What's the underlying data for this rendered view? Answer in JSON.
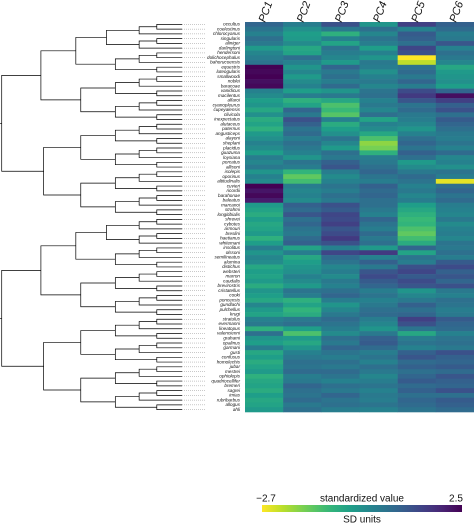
{
  "chart_data": {
    "type": "heatmap",
    "x": [
      "PC1",
      "PC2",
      "PC3",
      "PC4",
      "PC5",
      "PC6"
    ],
    "y": [
      "occultus",
      "coelestinus",
      "chlorocyanus",
      "singularis",
      "aliniger",
      "darlingtoni",
      "hendersoni",
      "dolichocephalus",
      "bahorucoensis",
      "equestris",
      "luteogularis",
      "smallwoodi",
      "noblei",
      "baracoae",
      "vanidicus",
      "macilentus",
      "alfaroi",
      "cyanopleurus",
      "cupeyalensis",
      "clivicola",
      "inexpectatus",
      "alutaceus",
      "paternus",
      "angusticeps",
      "alayoni",
      "sheplani",
      "placidus",
      "guazuma",
      "loysiana",
      "porcatus",
      "allisoni",
      "isolepis",
      "oporinus",
      "altitudinalis",
      "cuvieri",
      "ricordii",
      "barahonae",
      "baleatus",
      "marcanoi",
      "strahmi",
      "longitibialis",
      "shrevei",
      "cybotes",
      "armouri",
      "breslini",
      "haetianus",
      "whitemani",
      "insolitus",
      "olssoni",
      "semilineatus",
      "alumina",
      "distichus",
      "websteri",
      "marron",
      "caudalis",
      "brevirostris",
      "cristatellus",
      "cooki",
      "poncensis",
      "gundlachi",
      "pulchellus",
      "krugi",
      "stratulus",
      "evermanni",
      "lineatopus",
      "valencienni",
      "grahami",
      "opalinus",
      "garmani",
      "gusti",
      "confusus",
      "homolechis",
      "jubar",
      "mestrei",
      "ophiolepis",
      "quadriocellifer",
      "bremeri",
      "sagrei",
      "imias",
      "rubribarbus",
      "allogus",
      "ahli"
    ],
    "values": [
      [
        0.8,
        0.3,
        1.2,
        -0.2,
        1.5,
        0.9
      ],
      [
        0.5,
        -0.1,
        0.4,
        0.6,
        0.2,
        0.7
      ],
      [
        0.2,
        -0.4,
        -0.8,
        0.1,
        1.0,
        0.3
      ],
      [
        0.6,
        -0.3,
        0.2,
        0.5,
        0.9,
        0.4
      ],
      [
        0.4,
        0.0,
        -0.5,
        0.3,
        0.6,
        1.1
      ],
      [
        -0.3,
        -0.6,
        0.5,
        -0.4,
        1.4,
        0.2
      ],
      [
        0.1,
        -0.5,
        0.3,
        0.2,
        1.2,
        0.6
      ],
      [
        0.3,
        0.6,
        0.1,
        -0.2,
        -2.7,
        0.4
      ],
      [
        0.5,
        0.2,
        -0.3,
        0.4,
        -2.2,
        0.1
      ],
      [
        2.5,
        -0.2,
        0.8,
        0.3,
        0.5,
        -0.6
      ],
      [
        2.4,
        0.1,
        0.4,
        -0.1,
        0.7,
        -0.3
      ],
      [
        2.5,
        -0.3,
        0.6,
        0.2,
        0.4,
        -0.2
      ],
      [
        2.3,
        0.0,
        0.3,
        0.4,
        0.8,
        -0.1
      ],
      [
        2.4,
        0.2,
        0.7,
        0.1,
        0.3,
        -0.4
      ],
      [
        0.2,
        -0.4,
        -0.2,
        0.5,
        1.3,
        0.8
      ],
      [
        0.0,
        0.3,
        0.4,
        0.6,
        1.6,
        2.3
      ],
      [
        -0.4,
        -0.8,
        -0.6,
        0.2,
        1.1,
        1.5
      ],
      [
        -0.2,
        -0.5,
        -1.2,
        0.4,
        0.5,
        0.9
      ],
      [
        -0.6,
        0.8,
        -1.0,
        0.1,
        0.7,
        1.2
      ],
      [
        -0.1,
        0.4,
        -1.3,
        0.6,
        0.4,
        0.6
      ],
      [
        -0.7,
        1.2,
        0.2,
        -0.5,
        0.3,
        1.0
      ],
      [
        -0.5,
        0.9,
        -0.7,
        0.2,
        0.1,
        0.8
      ],
      [
        -0.8,
        0.5,
        -0.4,
        0.0,
        -0.2,
        0.6
      ],
      [
        -0.3,
        0.7,
        -0.1,
        -0.6,
        0.2,
        0.4
      ],
      [
        -0.1,
        0.3,
        0.5,
        -1.2,
        0.6,
        0.3
      ],
      [
        0.2,
        0.6,
        0.1,
        -1.8,
        0.8,
        0.5
      ],
      [
        0.0,
        0.4,
        -0.3,
        -1.6,
        0.5,
        0.2
      ],
      [
        -0.4,
        0.2,
        0.6,
        -0.8,
        0.9,
        0.7
      ],
      [
        0.3,
        -0.2,
        0.4,
        0.3,
        0.6,
        0.1
      ],
      [
        0.1,
        0.5,
        0.9,
        0.4,
        -0.3,
        0.2
      ],
      [
        0.4,
        0.3,
        1.1,
        0.6,
        0.0,
        -0.1
      ],
      [
        -0.2,
        -0.9,
        0.3,
        0.8,
        0.4,
        0.5
      ],
      [
        0.2,
        -1.4,
        0.0,
        0.5,
        0.7,
        0.3
      ],
      [
        0.0,
        -1.1,
        0.2,
        0.3,
        0.5,
        -2.5
      ],
      [
        2.5,
        0.3,
        0.5,
        0.9,
        0.2,
        0.6
      ],
      [
        2.2,
        0.1,
        0.3,
        0.7,
        0.4,
        0.8
      ],
      [
        2.4,
        0.2,
        0.6,
        0.8,
        0.1,
        0.5
      ],
      [
        2.1,
        0.0,
        0.4,
        0.6,
        0.3,
        0.7
      ],
      [
        -0.3,
        0.9,
        1.2,
        0.6,
        -0.4,
        0.3
      ],
      [
        -0.5,
        0.7,
        1.0,
        0.4,
        -0.6,
        0.2
      ],
      [
        -0.7,
        1.1,
        1.4,
        0.2,
        -0.8,
        0.1
      ],
      [
        -0.4,
        0.6,
        1.3,
        0.8,
        -1.0,
        0.4
      ],
      [
        -0.6,
        0.8,
        1.5,
        0.5,
        -0.9,
        0.0
      ],
      [
        -0.5,
        0.5,
        1.1,
        0.3,
        -1.2,
        0.2
      ],
      [
        -0.3,
        0.4,
        1.3,
        0.7,
        -1.4,
        0.3
      ],
      [
        -0.8,
        0.7,
        1.6,
        0.4,
        -1.1,
        0.1
      ],
      [
        -0.4,
        0.9,
        1.2,
        0.6,
        -0.7,
        0.5
      ],
      [
        0.3,
        -0.5,
        0.2,
        -0.3,
        0.8,
        0.4
      ],
      [
        -0.2,
        0.3,
        1.4,
        1.6,
        -0.5,
        0.6
      ],
      [
        0.1,
        -0.6,
        0.7,
        0.2,
        0.5,
        0.3
      ],
      [
        0.0,
        -0.4,
        0.5,
        0.9,
        0.3,
        1.0
      ],
      [
        -0.6,
        -0.2,
        0.1,
        0.4,
        1.2,
        1.3
      ],
      [
        -0.4,
        -0.1,
        0.3,
        1.1,
        1.4,
        0.9
      ],
      [
        -0.5,
        0.2,
        0.0,
        1.3,
        1.0,
        1.1
      ],
      [
        -0.3,
        0.0,
        0.4,
        1.0,
        1.3,
        0.8
      ],
      [
        -0.7,
        -0.3,
        0.2,
        0.8,
        1.1,
        1.2
      ],
      [
        -0.2,
        0.5,
        0.6,
        0.3,
        -0.2,
        0.4
      ],
      [
        -0.4,
        0.3,
        0.8,
        0.5,
        0.1,
        0.2
      ],
      [
        -0.6,
        -0.8,
        0.3,
        0.2,
        0.4,
        0.6
      ],
      [
        0.1,
        -0.5,
        -0.2,
        0.4,
        0.9,
        0.5
      ],
      [
        -0.3,
        -0.9,
        0.1,
        0.6,
        0.6,
        0.3
      ],
      [
        -0.5,
        -0.7,
        0.4,
        0.7,
        0.8,
        0.4
      ],
      [
        0.2,
        0.4,
        0.7,
        0.3,
        1.5,
        1.0
      ],
      [
        0.4,
        0.6,
        0.5,
        0.1,
        1.2,
        0.8
      ],
      [
        -0.8,
        -0.4,
        0.3,
        -0.2,
        0.5,
        0.7
      ],
      [
        0.6,
        -1.2,
        0.0,
        0.4,
        -0.6,
        0.2
      ],
      [
        -0.2,
        -0.3,
        0.6,
        0.9,
        0.3,
        0.5
      ],
      [
        -0.4,
        -0.6,
        0.4,
        1.0,
        0.5,
        0.6
      ],
      [
        0.3,
        -0.2,
        0.8,
        0.7,
        0.2,
        0.4
      ],
      [
        -0.6,
        0.2,
        0.5,
        0.3,
        0.9,
        1.2
      ],
      [
        -0.4,
        0.4,
        0.3,
        0.5,
        1.1,
        0.9
      ],
      [
        -0.7,
        0.6,
        0.6,
        0.2,
        0.7,
        0.8
      ],
      [
        -0.5,
        0.5,
        0.4,
        0.6,
        0.9,
        1.0
      ],
      [
        -0.3,
        0.7,
        0.7,
        0.4,
        0.6,
        0.7
      ],
      [
        -0.8,
        0.3,
        0.5,
        0.1,
        0.8,
        1.1
      ],
      [
        -0.6,
        0.4,
        0.2,
        0.3,
        1.0,
        0.9
      ],
      [
        -0.5,
        0.8,
        0.6,
        0.5,
        0.7,
        0.8
      ],
      [
        -0.7,
        0.6,
        0.4,
        0.2,
        0.9,
        1.2
      ],
      [
        -0.4,
        0.5,
        0.8,
        0.4,
        0.6,
        0.6
      ],
      [
        -0.6,
        0.7,
        0.5,
        0.3,
        0.8,
        1.0
      ],
      [
        -0.5,
        0.4,
        0.6,
        0.5,
        0.7,
        0.9
      ],
      [
        -0.3,
        0.6,
        0.3,
        0.2,
        0.5,
        0.7
      ]
    ],
    "colormap": "viridis_r",
    "clim": [
      -2.7,
      2.5
    ],
    "cticks": [
      {
        "value": -2.7,
        "label": "−2.7"
      },
      2.5
    ],
    "colorbar_label": "standardized value",
    "colorbar_units": "SD units"
  }
}
